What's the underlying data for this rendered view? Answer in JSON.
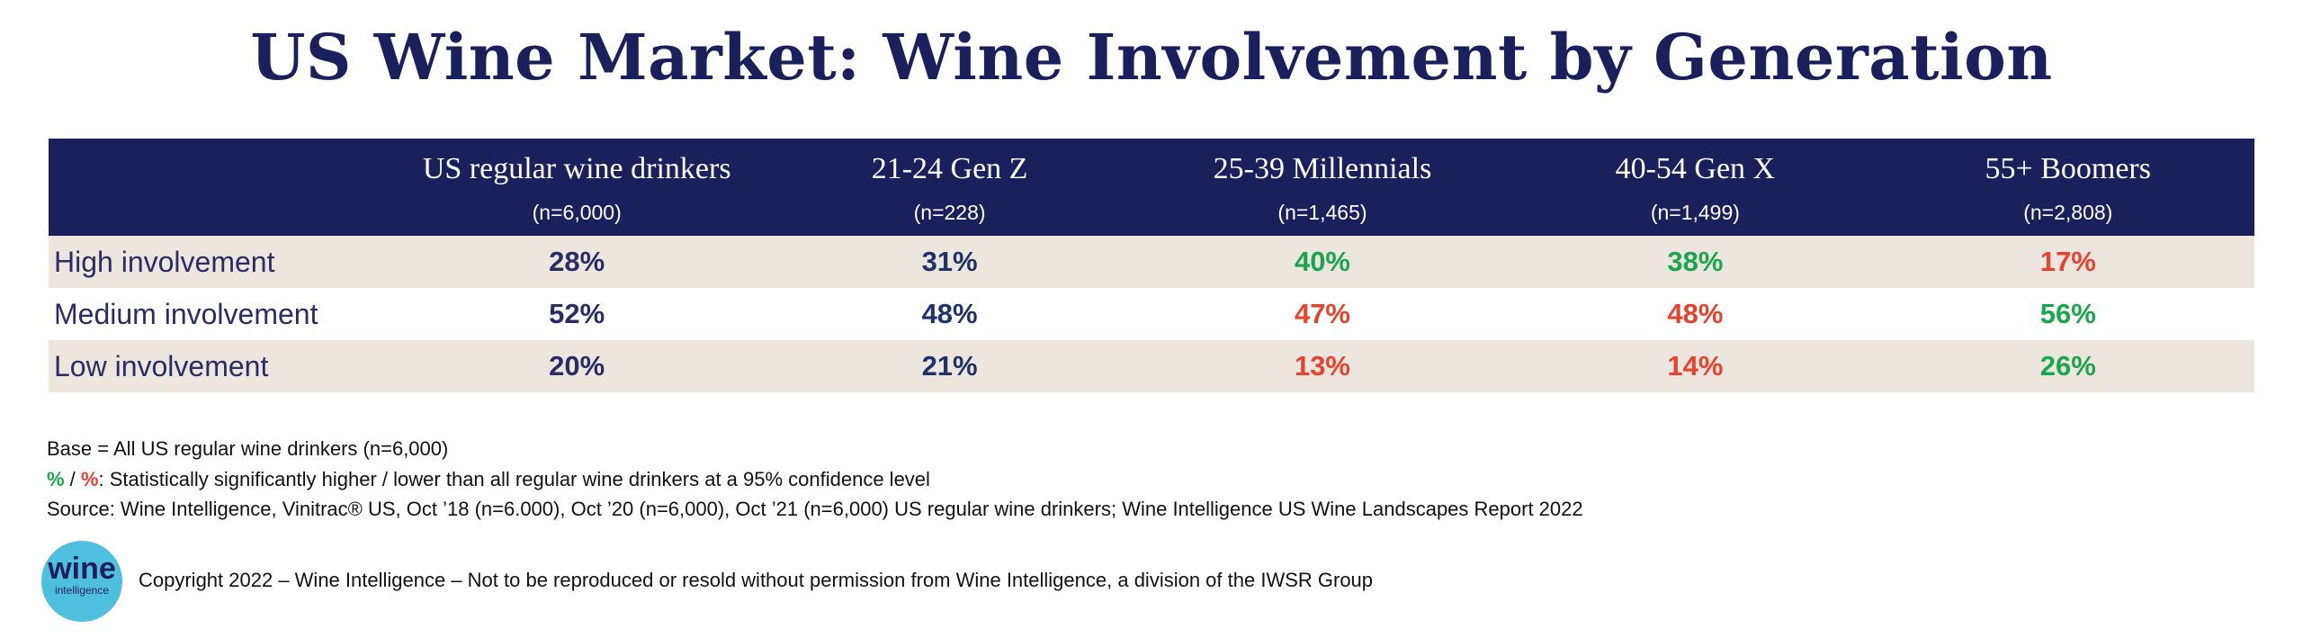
{
  "title": "US Wine Market: Wine Involvement by Generation",
  "columns": [
    {
      "label": "US regular wine drinkers",
      "n": "(n=6,000)"
    },
    {
      "label": "21-24 Gen Z",
      "n": "(n=228)"
    },
    {
      "label": "25-39 Millennials",
      "n": "(n=1,465)"
    },
    {
      "label": "40-54 Gen X",
      "n": "(n=1,499)"
    },
    {
      "label": "55+ Boomers",
      "n": "(n=2,808)"
    }
  ],
  "rows": [
    {
      "label": "High involvement",
      "values": [
        "28%",
        "31%",
        "40%",
        "38%",
        "17%"
      ],
      "sig": [
        "none",
        "none",
        "higher",
        "higher",
        "lower"
      ]
    },
    {
      "label": "Medium involvement",
      "values": [
        "52%",
        "48%",
        "47%",
        "48%",
        "56%"
      ],
      "sig": [
        "none",
        "none",
        "lower",
        "lower",
        "higher"
      ]
    },
    {
      "label": "Low involvement",
      "values": [
        "20%",
        "21%",
        "13%",
        "14%",
        "26%"
      ],
      "sig": [
        "none",
        "none",
        "lower",
        "lower",
        "higher"
      ]
    }
  ],
  "colors": {
    "navy": "#1b1f5c",
    "higher": "#1aa64a",
    "lower": "#e6432f",
    "shade": "#ede6df"
  },
  "notes": {
    "base": "Base = All US regular wine drinkers (n=6,000)",
    "sig_high": "%",
    "sig_sep": " / ",
    "sig_low": "%",
    "sig_text": ": Statistically significantly higher / lower than all regular wine drinkers at a 95% confidence level",
    "source": "Source: Wine Intelligence, Vinitrac® US, Oct ’18 (n=6.000), Oct ’20 (n=6,000), Oct ’21 (n=6,000) US regular wine drinkers; Wine Intelligence US Wine Landscapes Report 2022"
  },
  "logo": {
    "word": "wine",
    "sub": "intelligence"
  },
  "copyright": "Copyright 2022 – Wine Intelligence – Not to be reproduced or resold without permission from Wine Intelligence, a division of the IWSR Group"
}
